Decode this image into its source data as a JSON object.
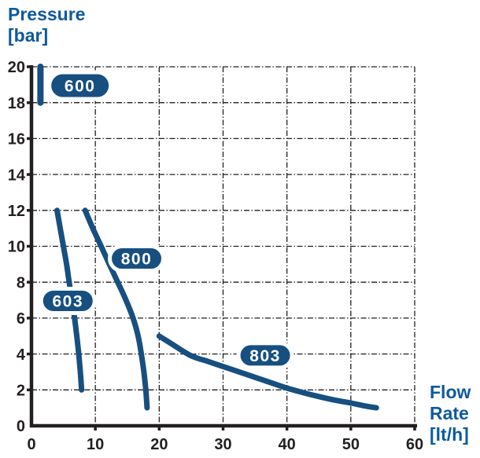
{
  "y_axis_title_lines": [
    "Pressure",
    "[bar]"
  ],
  "x_axis_title_lines": [
    "Flow",
    "Rate",
    "[lt/h]"
  ],
  "colors": {
    "title_blue": "#0d5a9c",
    "curve_blue": "#174f80",
    "pill_fill": "#174f80",
    "pill_text": "#ffffff",
    "axis_black": "#231f20",
    "grid_black": "#231f20",
    "tick_label_black": "#231f20",
    "background": "#ffffff"
  },
  "chart_data": {
    "type": "line",
    "title": "",
    "xlabel": "Flow Rate [lt/h]",
    "ylabel": "Pressure [bar]",
    "xlim": [
      0,
      60
    ],
    "ylim": [
      0,
      20
    ],
    "xticks": [
      0,
      10,
      20,
      30,
      40,
      50,
      60
    ],
    "yticks": [
      0,
      2,
      4,
      6,
      8,
      10,
      12,
      14,
      16,
      18,
      20
    ],
    "grid": true,
    "grid_style": "dash-dot",
    "legend_position": "on-curve-pills",
    "series": [
      {
        "name": "600",
        "label": "600",
        "label_pos": [
          7.6,
          18.95
        ],
        "points": [
          [
            1.4,
            20
          ],
          [
            1.4,
            18
          ]
        ]
      },
      {
        "name": "603",
        "label": "603",
        "label_pos": [
          5.7,
          6.96
        ],
        "points": [
          [
            4,
            12
          ],
          [
            4.5,
            11
          ],
          [
            5,
            10
          ],
          [
            5.5,
            9
          ],
          [
            5.9,
            8
          ],
          [
            6.35,
            7
          ],
          [
            6.75,
            6
          ],
          [
            7.1,
            5
          ],
          [
            7.4,
            4
          ],
          [
            7.65,
            3
          ],
          [
            7.85,
            2
          ]
        ]
      },
      {
        "name": "800",
        "label": "800",
        "label_pos": [
          16.45,
          9.32
        ],
        "points": [
          [
            8.4,
            12
          ],
          [
            9.6,
            11
          ],
          [
            10.9,
            10
          ],
          [
            12.2,
            9
          ],
          [
            13.5,
            8
          ],
          [
            14.8,
            7
          ],
          [
            15.9,
            6
          ],
          [
            16.7,
            5
          ],
          [
            17.2,
            4
          ],
          [
            17.6,
            3
          ],
          [
            17.9,
            2
          ],
          [
            18.1,
            1
          ]
        ]
      },
      {
        "name": "803",
        "label": "803",
        "label_pos": [
          36.6,
          3.92
        ],
        "points": [
          [
            20,
            5
          ],
          [
            22,
            4.55
          ],
          [
            25,
            3.9
          ],
          [
            27.5,
            3.6
          ],
          [
            30,
            3.3
          ],
          [
            32.5,
            3.0
          ],
          [
            35,
            2.7
          ],
          [
            37.5,
            2.4
          ],
          [
            40,
            2.1
          ],
          [
            42.5,
            1.85
          ],
          [
            45,
            1.63
          ],
          [
            47.5,
            1.43
          ],
          [
            50,
            1.27
          ],
          [
            52,
            1.12
          ],
          [
            54,
            1.0
          ]
        ]
      }
    ]
  }
}
